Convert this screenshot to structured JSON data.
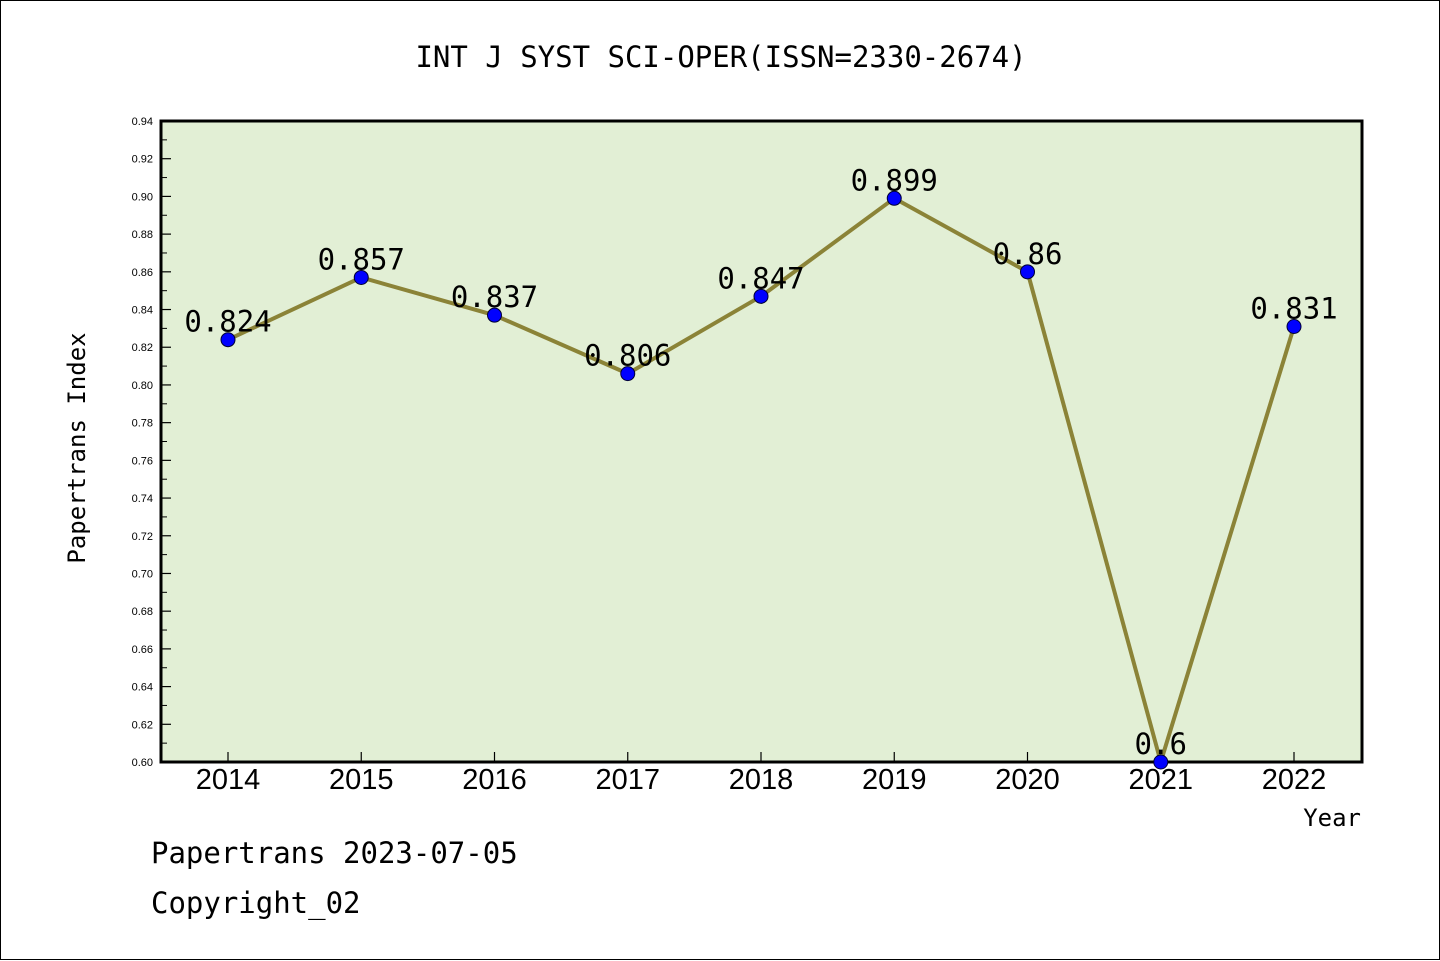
{
  "chart_data": {
    "type": "line",
    "title": "INT J SYST SCI-OPER(ISSN=2330-2674)",
    "xlabel": "Year",
    "ylabel": "Papertrans Index",
    "categories": [
      "2014",
      "2015",
      "2016",
      "2017",
      "2018",
      "2019",
      "2020",
      "2021",
      "2022"
    ],
    "series": [
      {
        "values": [
          0.824,
          0.857,
          0.837,
          0.806,
          0.847,
          0.899,
          0.86,
          0.6,
          0.831
        ],
        "data_labels": [
          "0.824",
          "0.857",
          "0.837",
          "0.806",
          "0.847",
          "0.899",
          "0.86",
          "0.6",
          "0.831"
        ],
        "line_color": "#8b8337",
        "marker_color": "#0000ff"
      }
    ],
    "ylim": [
      0.6,
      0.94
    ],
    "yticks": [
      "0.60",
      "0.62",
      "0.64",
      "0.66",
      "0.68",
      "0.70",
      "0.72",
      "0.74",
      "0.76",
      "0.78",
      "0.80",
      "0.82",
      "0.84",
      "0.86",
      "0.88",
      "0.90",
      "0.92",
      "0.94"
    ],
    "grid": false,
    "plot_background": "#e2efd5"
  },
  "footer": {
    "line1": "Papertrans 2023-07-05",
    "line2": "Copyright_02"
  }
}
